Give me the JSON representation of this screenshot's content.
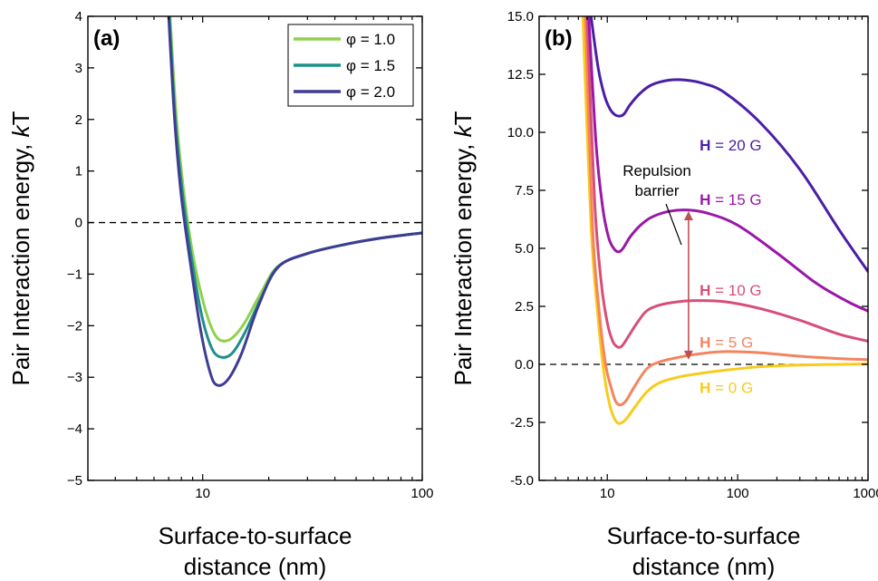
{
  "chart_data": [
    {
      "panel": "(a)",
      "type": "line",
      "xscale": "log",
      "xlim": [
        3,
        100
      ],
      "ylim": [
        -5,
        4
      ],
      "x_ticks": [
        10,
        100
      ],
      "x_tick_labels": [
        "10",
        "100"
      ],
      "y_ticks": [
        -5,
        -4,
        -3,
        -2,
        -1,
        0,
        1,
        2,
        3,
        4
      ],
      "y_tick_labels": [
        "−5",
        "−4",
        "−3",
        "−2",
        "−1",
        "0",
        "1",
        "2",
        "3",
        "4"
      ],
      "xlabel_lines": [
        "Surface-to-surface",
        "distance (nm)"
      ],
      "ylabel_main": "Pair Interaction energy, ",
      "ylabel_italic": "k",
      "ylabel_tail": "T",
      "zero_line": true,
      "legend_position": "top-right",
      "series": [
        {
          "name": "φ = 1.0",
          "color": "#8fd14f",
          "x": [
            7.1,
            7.6,
            8.2,
            9.0,
            10.0,
            11.0,
            12.0,
            13.5,
            15.5,
            18.5,
            22.0,
            30.0,
            45.0,
            65.0,
            100.0
          ],
          "y": [
            4.0,
            2.0,
            0.6,
            -0.6,
            -1.5,
            -2.05,
            -2.28,
            -2.25,
            -1.95,
            -1.35,
            -0.85,
            -0.6,
            -0.42,
            -0.3,
            -0.2
          ]
        },
        {
          "name": "φ = 1.5",
          "color": "#1e9088",
          "x": [
            7.05,
            7.5,
            8.1,
            8.9,
            9.9,
            10.9,
            11.9,
            13.5,
            15.5,
            18.5,
            22.0,
            30.0,
            45.0,
            65.0,
            100.0
          ],
          "y": [
            4.0,
            2.0,
            0.55,
            -0.7,
            -1.8,
            -2.4,
            -2.6,
            -2.55,
            -2.15,
            -1.45,
            -0.86,
            -0.6,
            -0.42,
            -0.3,
            -0.2
          ]
        },
        {
          "name": "φ = 2.0",
          "color": "#3f3c94",
          "x": [
            7.0,
            7.45,
            8.0,
            8.8,
            9.8,
            10.8,
            11.6,
            13.0,
            15.0,
            18.0,
            22.0,
            30.0,
            45.0,
            65.0,
            100.0
          ],
          "y": [
            4.0,
            2.0,
            0.5,
            -0.8,
            -2.1,
            -2.9,
            -3.15,
            -3.05,
            -2.55,
            -1.6,
            -0.87,
            -0.6,
            -0.42,
            -0.3,
            -0.2
          ]
        }
      ]
    },
    {
      "panel": "(b)",
      "type": "line",
      "xscale": "log",
      "xlim": [
        3,
        1000
      ],
      "ylim": [
        -5,
        15
      ],
      "x_ticks": [
        10,
        100,
        1000
      ],
      "x_tick_labels": [
        "10",
        "100",
        "1000"
      ],
      "y_ticks": [
        -5,
        -2.5,
        0,
        2.5,
        5,
        7.5,
        10,
        12.5,
        15
      ],
      "y_tick_labels": [
        "-5.0",
        "-2.5",
        "0.0",
        "2.5",
        "5.0",
        "7.5",
        "10.0",
        "12.5",
        "15.0"
      ],
      "xlabel_lines": [
        "Surface-to-surface",
        "distance (nm)"
      ],
      "ylabel_main": "Pair Interaction energy, ",
      "ylabel_italic": "k",
      "ylabel_tail": "T",
      "zero_line": true,
      "annotation_lines": [
        "Repulsion",
        "barrier"
      ],
      "barrier_arrow": {
        "x": 42,
        "y_from": 0.2,
        "y_to": 6.6,
        "color": "#c0504d"
      },
      "series": [
        {
          "label_bold": "H",
          "label_rest": " = 0 G",
          "label_at": [
            100,
            -1.0
          ],
          "color": "#f9cb1a",
          "x": [
            6.5,
            7.5,
            8.5,
            9.5,
            10.5,
            11.5,
            12.5,
            14.0,
            16.0,
            20.0,
            25.0,
            35.0,
            50.0,
            80.0,
            150.0,
            300.0,
            600.0,
            1000.0
          ],
          "y": [
            15.0,
            6.0,
            2.0,
            -0.5,
            -1.8,
            -2.4,
            -2.55,
            -2.35,
            -1.9,
            -1.2,
            -0.8,
            -0.55,
            -0.4,
            -0.25,
            -0.1,
            -0.03,
            0.0,
            0.02
          ]
        },
        {
          "label_bold": "H",
          "label_rest": " = 5 G",
          "label_at": [
            100,
            0.95
          ],
          "color": "#f4845f",
          "x": [
            6.8,
            7.7,
            8.7,
            9.7,
            10.7,
            11.6,
            12.6,
            14.0,
            16.0,
            20.0,
            25.0,
            35.0,
            50.0,
            80.0,
            150.0,
            300.0,
            600.0,
            1000.0
          ],
          "y": [
            15.0,
            6.0,
            2.2,
            0.0,
            -1.0,
            -1.6,
            -1.75,
            -1.55,
            -1.0,
            -0.2,
            0.1,
            0.3,
            0.45,
            0.55,
            0.5,
            0.35,
            0.25,
            0.2
          ]
        },
        {
          "label_bold": "H",
          "label_rest": " = 10 G",
          "label_at": [
            100,
            3.2
          ],
          "color": "#d64f78",
          "x": [
            7.0,
            8.0,
            9.0,
            10.0,
            11.0,
            12.0,
            13.0,
            14.5,
            17.0,
            20.0,
            25.0,
            35.0,
            50.0,
            80.0,
            150.0,
            300.0,
            600.0,
            1000.0
          ],
          "y": [
            15.0,
            7.0,
            3.5,
            1.8,
            1.0,
            0.75,
            0.8,
            1.2,
            1.8,
            2.3,
            2.55,
            2.7,
            2.75,
            2.7,
            2.4,
            1.9,
            1.3,
            1.0
          ]
        },
        {
          "label_bold": "H",
          "label_rest": " = 15 G",
          "label_at": [
            100,
            7.1
          ],
          "color": "#9a17a8",
          "x": [
            7.2,
            8.2,
            9.2,
            10.2,
            11.2,
            12.2,
            13.2,
            15.0,
            18.0,
            22.0,
            30.0,
            42.0,
            60.0,
            100.0,
            200.0,
            400.0,
            700.0,
            1000.0
          ],
          "y": [
            15.0,
            9.5,
            6.8,
            5.5,
            5.0,
            4.85,
            5.0,
            5.5,
            6.0,
            6.35,
            6.6,
            6.65,
            6.5,
            6.0,
            4.8,
            3.5,
            2.7,
            2.3
          ]
        },
        {
          "label_bold": "H",
          "label_rest": " = 20 G",
          "label_at": [
            100,
            9.45
          ],
          "color": "#4b1ea6",
          "x": [
            7.5,
            8.5,
            9.5,
            10.5,
            11.5,
            12.5,
            13.5,
            15.0,
            18.0,
            22.0,
            30.0,
            40.0,
            55.0,
            80.0,
            150.0,
            300.0,
            600.0,
            1000.0
          ],
          "y": [
            15.0,
            12.8,
            11.6,
            11.0,
            10.75,
            10.7,
            10.8,
            11.2,
            11.7,
            12.05,
            12.25,
            12.25,
            12.1,
            11.7,
            10.4,
            8.4,
            5.8,
            4.0
          ]
        }
      ]
    }
  ]
}
